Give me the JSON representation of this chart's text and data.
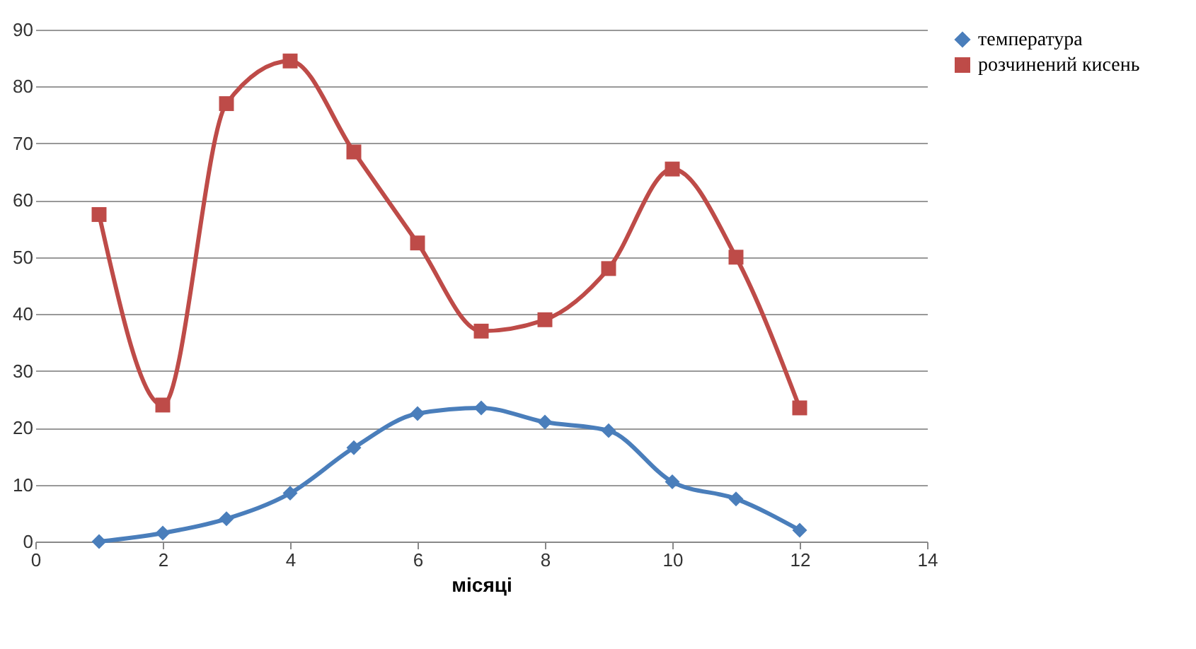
{
  "chart_data": {
    "type": "line",
    "xlabel": "місяці",
    "x": [
      1,
      2,
      3,
      4,
      5,
      6,
      7,
      8,
      9,
      10,
      11,
      12
    ],
    "series": [
      {
        "name": "температура",
        "color": "#4a7ebb",
        "marker": "diamond",
        "values": [
          0,
          1.5,
          4,
          8.5,
          16.5,
          22.5,
          23.5,
          21,
          19.5,
          10.5,
          7.5,
          2
        ]
      },
      {
        "name": "розчинений кисень",
        "color": "#be4b48",
        "marker": "square",
        "values": [
          57.5,
          24,
          77,
          84.5,
          68.5,
          52.5,
          37,
          39,
          48,
          65.5,
          50,
          23.5
        ]
      }
    ],
    "xlim": [
      0,
      14
    ],
    "xticks": [
      0,
      2,
      4,
      6,
      8,
      10,
      12,
      14
    ],
    "ylim": [
      0,
      90
    ],
    "yticks": [
      0,
      10,
      20,
      30,
      40,
      50,
      60,
      70,
      80,
      90
    ],
    "grid": "y",
    "legend": "right",
    "line_style": "solid"
  }
}
